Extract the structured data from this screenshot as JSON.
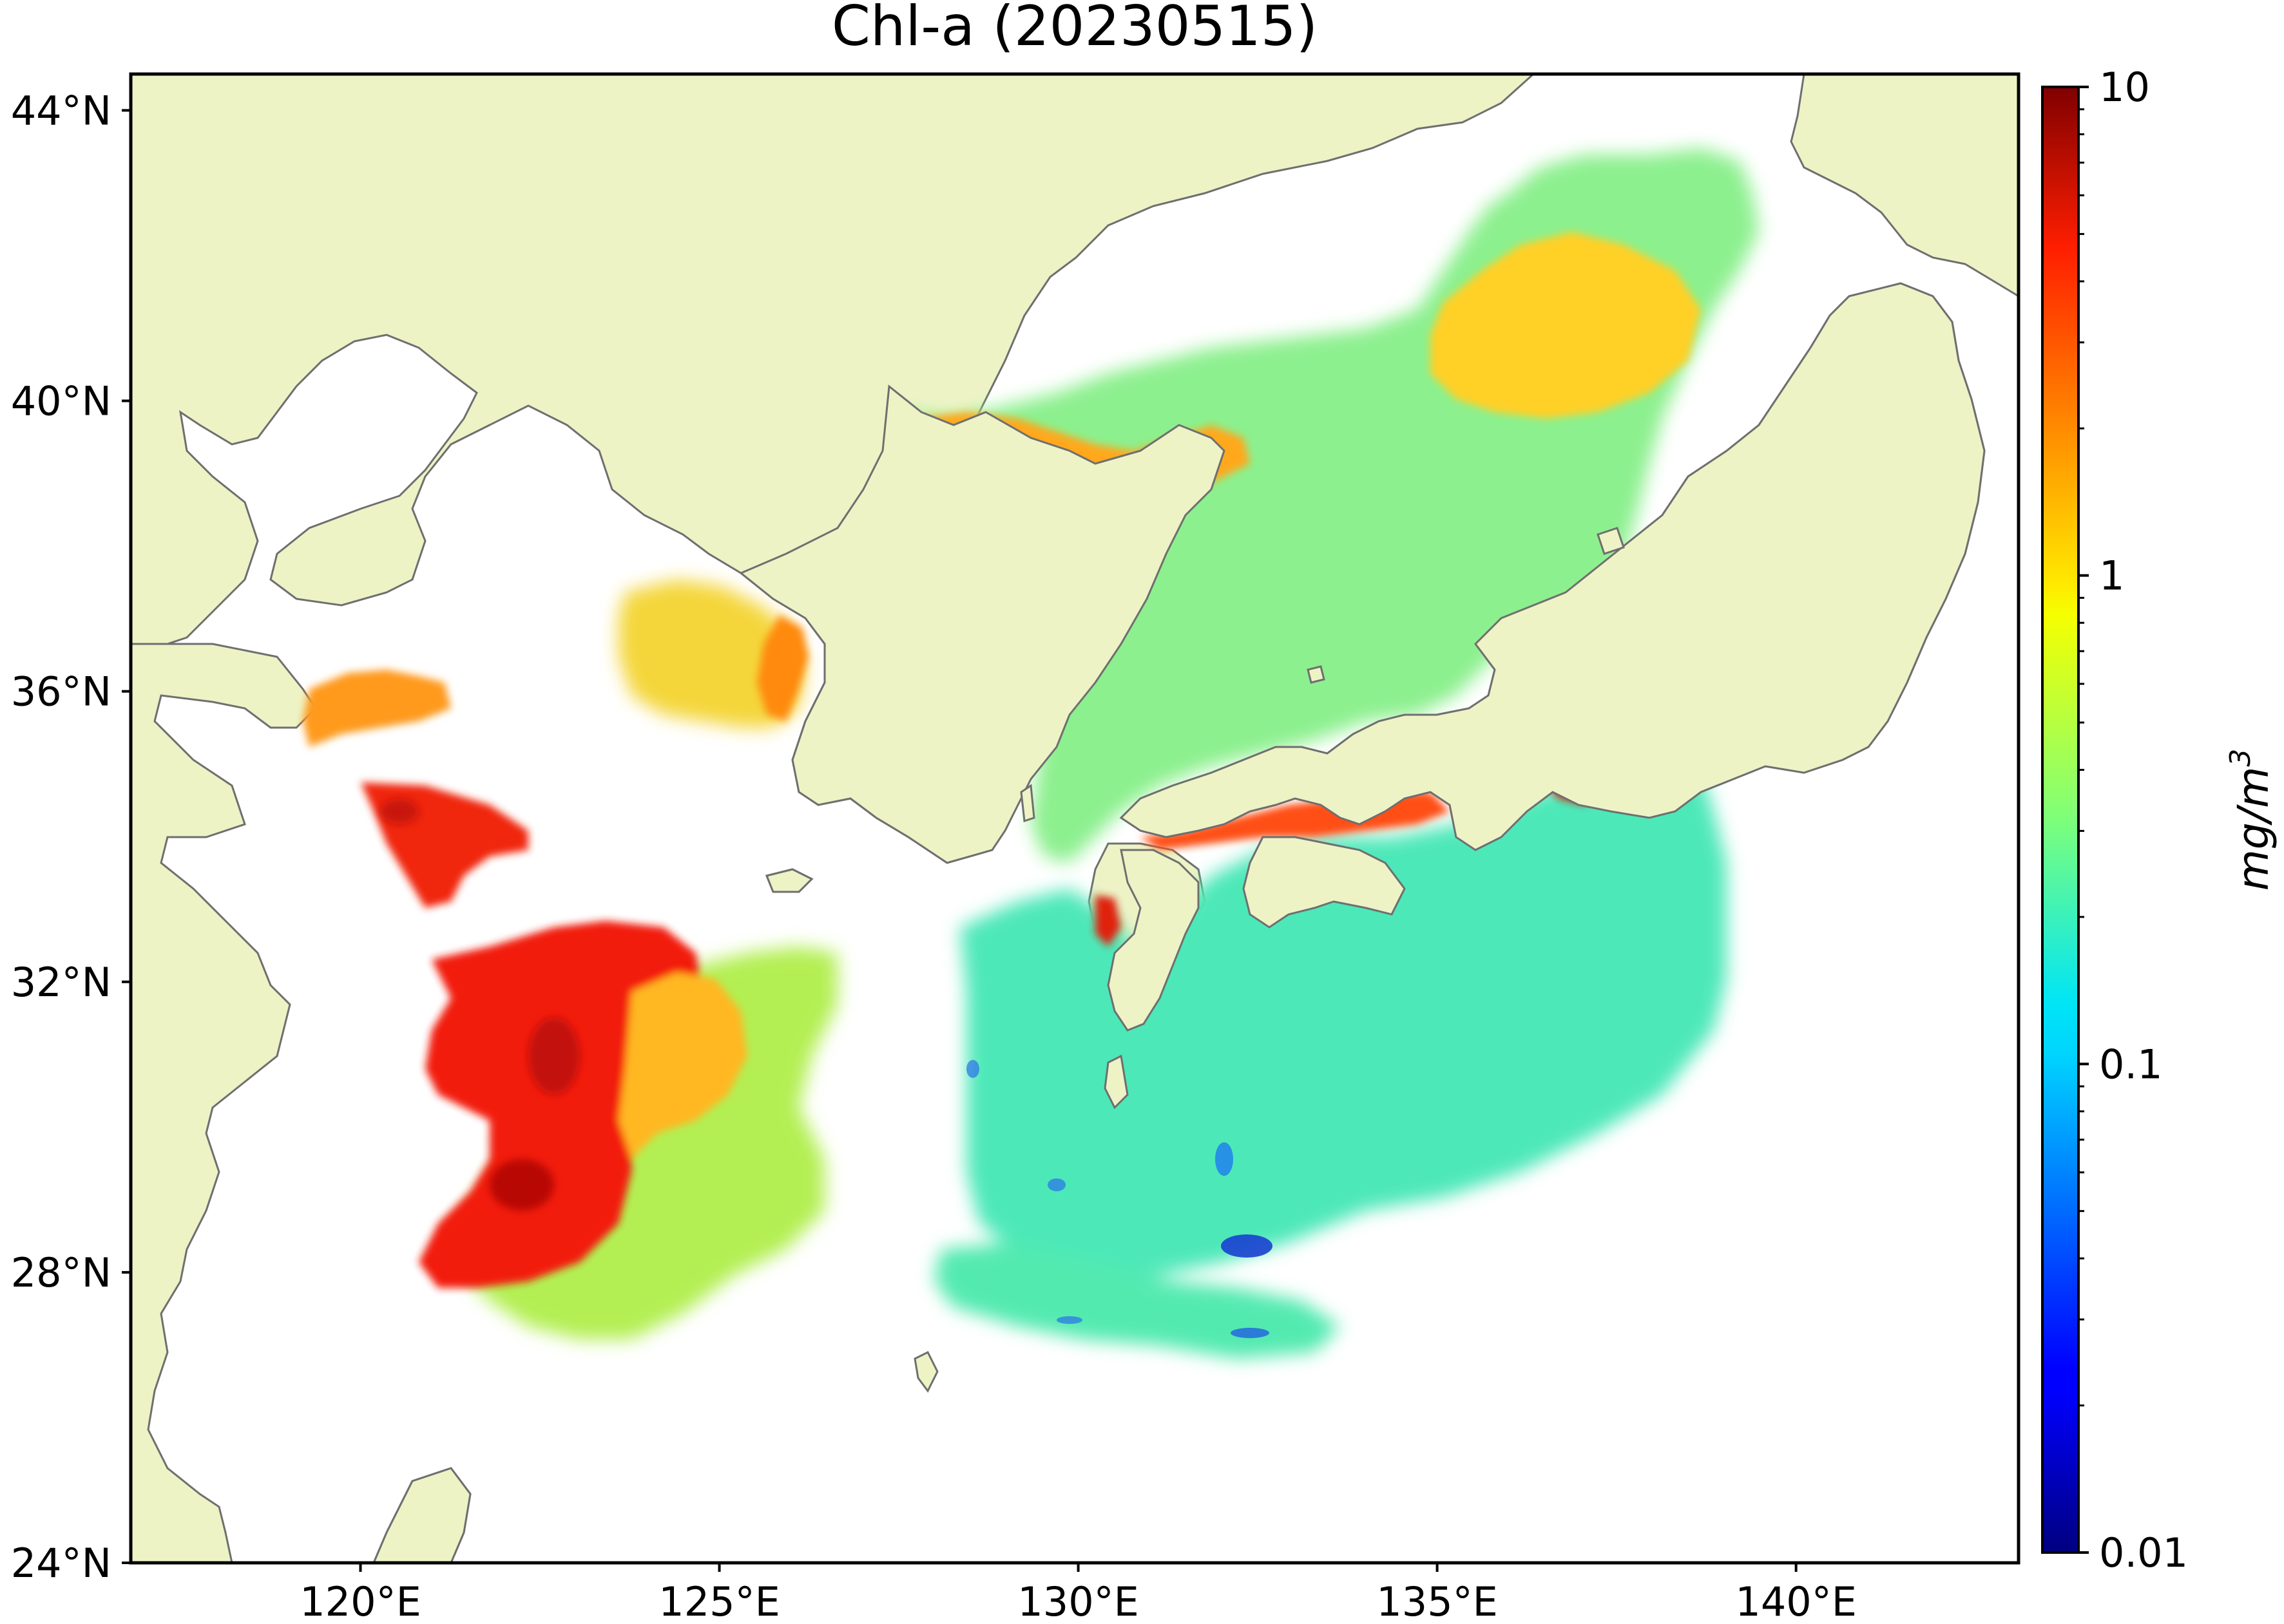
{
  "title": "Chl-a (20230515)",
  "colors": {
    "land": "#eef3c6",
    "coast": "#6f6f6f",
    "frame": "#000000"
  },
  "map": {
    "lon_range": [
      116.8,
      143.1
    ],
    "lat_range": [
      24.0,
      44.5
    ],
    "lat_ticks": [
      {
        "value": 44,
        "label": "44°N"
      },
      {
        "value": 40,
        "label": "40°N"
      },
      {
        "value": 36,
        "label": "36°N"
      },
      {
        "value": 32,
        "label": "32°N"
      },
      {
        "value": 28,
        "label": "28°N"
      },
      {
        "value": 24,
        "label": "24°N"
      }
    ],
    "lon_ticks": [
      {
        "value": 120,
        "label": "120°E"
      },
      {
        "value": 125,
        "label": "125°E"
      },
      {
        "value": 130,
        "label": "130°E"
      },
      {
        "value": 135,
        "label": "135°E"
      },
      {
        "value": 140,
        "label": "140°E"
      }
    ]
  },
  "colorbar": {
    "label": "mg/m",
    "label_superscript": "3",
    "scale": "log",
    "range": [
      0.01,
      10
    ],
    "colormap": "jet",
    "ticks": [
      {
        "value": 10,
        "label": "10"
      },
      {
        "value": 1,
        "label": "1"
      },
      {
        "value": 0.1,
        "label": "0.1"
      },
      {
        "value": 0.01,
        "label": "0.01"
      }
    ]
  }
}
